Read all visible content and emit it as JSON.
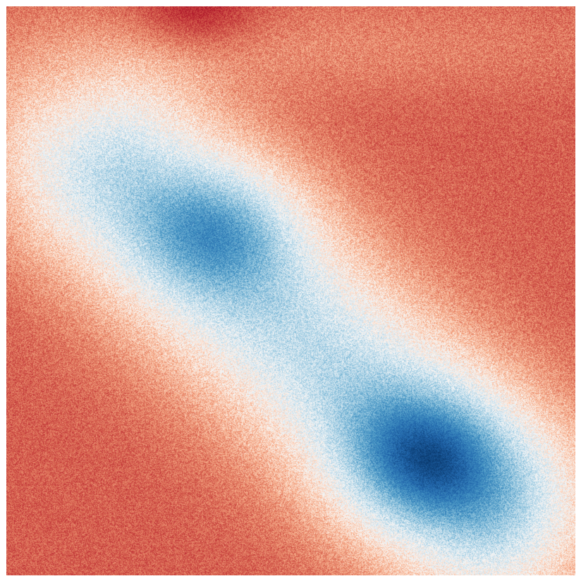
{
  "chart_data": {
    "type": "heatmap",
    "title": "",
    "xlabel": "",
    "ylabel": "",
    "axes_visible": false,
    "grid": false,
    "legend": "none",
    "colormap": "RdBu",
    "colormap_stops": [
      "#67001f",
      "#b2182b",
      "#d6604d",
      "#f4a582",
      "#fddbc7",
      "#f7f7f7",
      "#d1e5f0",
      "#92c5de",
      "#4393c3",
      "#2166ac",
      "#053061"
    ],
    "value_range": [
      0,
      1
    ],
    "background_value": 0.2,
    "noise_amplitude": 0.2,
    "field_components": [
      {
        "name": "diagonal-band",
        "x0": 0.2,
        "y0": 0.3,
        "x1": 0.85,
        "y1": 0.88,
        "width": 0.13,
        "amplitude": 0.42
      },
      {
        "name": "upper-left-lobe",
        "x": 0.38,
        "y": 0.39,
        "sx": 0.1,
        "sy": 0.08,
        "amplitude": 0.22
      },
      {
        "name": "lower-right-lobe",
        "x": 0.74,
        "y": 0.8,
        "sx": 0.11,
        "sy": 0.09,
        "amplitude": 0.34
      },
      {
        "name": "top-dark-red",
        "x": 0.33,
        "y": 0.01,
        "sx": 0.08,
        "sy": 0.05,
        "amplitude": -0.12
      },
      {
        "name": "top-light-band",
        "x": 0.55,
        "y": 0.07,
        "sx": 0.4,
        "sy": 0.06,
        "amplitude": 0.06
      },
      {
        "name": "left-light-patch",
        "x": 0.03,
        "y": 0.22,
        "sx": 0.06,
        "sy": 0.1,
        "amplitude": 0.06
      }
    ]
  }
}
